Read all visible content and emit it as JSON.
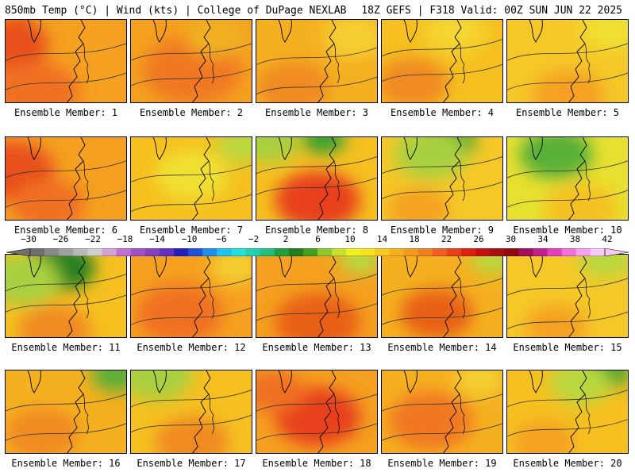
{
  "header": {
    "title_left": "850mb Temp (°C) | Wind (kts) | College of DuPage NEXLAB",
    "title_right": "18Z GEFS | F318 Valid: 00Z SUN JUN 22 2025"
  },
  "members": [
    {
      "label": "Ensemble Member: 1",
      "base": "#f5a020",
      "blobs": [
        [
          "#e8501c",
          0.05,
          0.3,
          0.3
        ],
        [
          "#f07020",
          0.25,
          0.85,
          0.35
        ],
        [
          "#e85018",
          0.1,
          0.05,
          0.12
        ]
      ],
      "contours": [
        0.35,
        0.7
      ]
    },
    {
      "label": "Ensemble Member: 2",
      "base": "#f5a020",
      "blobs": [
        [
          "#f07820",
          0.5,
          0.6,
          0.4
        ],
        [
          "#f0b020",
          0.7,
          0.2,
          0.25
        ]
      ],
      "contours": [
        0.35,
        0.65
      ]
    },
    {
      "label": "Ensemble Member: 3",
      "base": "#f5b020",
      "blobs": [
        [
          "#f5d030",
          0.8,
          0.2,
          0.25
        ],
        [
          "#f08a20",
          0.3,
          0.8,
          0.3
        ]
      ],
      "contours": [
        0.4,
        0.75
      ]
    },
    {
      "label": "Ensemble Member: 4",
      "base": "#f5c020",
      "blobs": [
        [
          "#f08a20",
          0.25,
          0.75,
          0.3
        ],
        [
          "#f5d630",
          0.6,
          0.15,
          0.25
        ]
      ],
      "contours": [
        0.3,
        0.6
      ]
    },
    {
      "label": "Ensemble Member: 5",
      "base": "#f5c828",
      "blobs": [
        [
          "#f5a020",
          0.5,
          0.9,
          0.3
        ],
        [
          "#f0e030",
          0.85,
          0.1,
          0.25
        ]
      ],
      "contours": [
        0.35,
        0.7
      ]
    },
    {
      "label": "Ensemble Member: 6",
      "base": "#f5a020",
      "blobs": [
        [
          "#e8501c",
          0.05,
          0.4,
          0.35
        ],
        [
          "#f07020",
          0.35,
          0.8,
          0.3
        ]
      ],
      "contours": [
        0.35,
        0.7
      ]
    },
    {
      "label": "Ensemble Member: 7",
      "base": "#f5c020",
      "blobs": [
        [
          "#f0e030",
          0.5,
          0.45,
          0.3
        ],
        [
          "#b8d840",
          0.9,
          0.1,
          0.2
        ]
      ],
      "contours": [
        0.4,
        0.75
      ]
    },
    {
      "label": "Ensemble Member: 8",
      "base": "#f5c020",
      "blobs": [
        [
          "#e8401c",
          0.5,
          0.75,
          0.35
        ],
        [
          "#38a030",
          0.55,
          0.02,
          0.18
        ],
        [
          "#a8d040",
          0.1,
          0.05,
          0.25
        ]
      ],
      "contours": [
        0.3,
        0.55
      ]
    },
    {
      "label": "Ensemble Member: 9",
      "base": "#f5c828",
      "blobs": [
        [
          "#38a030",
          0.55,
          0.05,
          0.22
        ],
        [
          "#a8d040",
          0.4,
          0.2,
          0.3
        ],
        [
          "#f5a020",
          0.3,
          0.85,
          0.25
        ]
      ],
      "contours": [
        0.3,
        0.6
      ]
    },
    {
      "label": "Ensemble Member: 10",
      "base": "#e8e030",
      "blobs": [
        [
          "#58b038",
          0.4,
          0.2,
          0.3
        ],
        [
          "#f5c020",
          0.6,
          0.85,
          0.3
        ]
      ],
      "contours": [
        0.35,
        0.7
      ]
    },
    {
      "label": "Ensemble Member: 11",
      "base": "#f5c020",
      "blobs": [
        [
          "#208020",
          0.45,
          0.15,
          0.28
        ],
        [
          "#a8d040",
          0.15,
          0.3,
          0.3
        ],
        [
          "#f08a20",
          0.4,
          0.9,
          0.3
        ]
      ],
      "contours": [
        0.3,
        0.55
      ]
    },
    {
      "label": "Ensemble Member: 12",
      "base": "#f5a020",
      "blobs": [
        [
          "#f07020",
          0.4,
          0.7,
          0.35
        ],
        [
          "#f5d030",
          0.85,
          0.15,
          0.2
        ]
      ],
      "contours": [
        0.35,
        0.7
      ]
    },
    {
      "label": "Ensemble Member: 13",
      "base": "#f5a020",
      "blobs": [
        [
          "#e86018",
          0.5,
          0.8,
          0.35
        ],
        [
          "#b8d840",
          0.85,
          0.05,
          0.18
        ]
      ],
      "contours": [
        0.3,
        0.65
      ]
    },
    {
      "label": "Ensemble Member: 14",
      "base": "#f5b020",
      "blobs": [
        [
          "#e86018",
          0.45,
          0.7,
          0.3
        ],
        [
          "#b8d840",
          0.9,
          0.05,
          0.18
        ]
      ],
      "contours": [
        0.35,
        0.7
      ]
    },
    {
      "label": "Ensemble Member: 15",
      "base": "#f5c828",
      "blobs": [
        [
          "#b8d840",
          0.8,
          0.05,
          0.22
        ],
        [
          "#f5a020",
          0.4,
          0.85,
          0.25
        ]
      ],
      "contours": [
        0.35,
        0.75
      ]
    },
    {
      "label": "Ensemble Member: 16",
      "base": "#f5b020",
      "blobs": [
        [
          "#58b038",
          0.9,
          0.05,
          0.2
        ],
        [
          "#f08a20",
          0.3,
          0.75,
          0.3
        ]
      ],
      "contours": [
        0.35,
        0.7
      ]
    },
    {
      "label": "Ensemble Member: 17",
      "base": "#f5c020",
      "blobs": [
        [
          "#a8d040",
          0.2,
          0.05,
          0.3
        ],
        [
          "#f08a20",
          0.5,
          0.85,
          0.3
        ]
      ],
      "contours": [
        0.3,
        0.6
      ]
    },
    {
      "label": "Ensemble Member: 18",
      "base": "#f5a020",
      "blobs": [
        [
          "#e8401c",
          0.5,
          0.55,
          0.35
        ],
        [
          "#f07020",
          0.15,
          0.25,
          0.25
        ]
      ],
      "contours": [
        0.35,
        0.7
      ]
    },
    {
      "label": "Ensemble Member: 19",
      "base": "#f5b020",
      "blobs": [
        [
          "#f07820",
          0.4,
          0.6,
          0.35
        ],
        [
          "#f5d030",
          0.8,
          0.1,
          0.2
        ]
      ],
      "contours": [
        0.35,
        0.7
      ]
    },
    {
      "label": "Ensemble Member: 20",
      "base": "#f5c020",
      "blobs": [
        [
          "#38a030",
          0.8,
          0.02,
          0.2
        ],
        [
          "#b8d840",
          0.6,
          0.15,
          0.25
        ],
        [
          "#f5a020",
          0.3,
          0.85,
          0.25
        ]
      ],
      "contours": [
        0.3,
        0.65
      ]
    }
  ],
  "colorbar": {
    "ticks": [
      "−30",
      "−26",
      "−22",
      "−18",
      "−14",
      "−10",
      "−6",
      "−2",
      "2",
      "6",
      "10",
      "14",
      "18",
      "22",
      "26",
      "30",
      "34",
      "38",
      "42"
    ],
    "colors": [
      "#707070",
      "#8a8a8a",
      "#a0a0a0",
      "#b8b8b8",
      "#cfcfcf",
      "#d4a0d8",
      "#c070d0",
      "#a050c8",
      "#8040c0",
      "#6030c0",
      "#2020c0",
      "#2050e0",
      "#2090f0",
      "#20c0f0",
      "#20e0e0",
      "#20d0b0",
      "#20c080",
      "#20a040",
      "#208020",
      "#40a020",
      "#90c830",
      "#c8e030",
      "#f0f020",
      "#f8e020",
      "#f8c820",
      "#f5b020",
      "#f59820",
      "#f08020",
      "#f06020",
      "#e84018",
      "#e02010",
      "#c81010",
      "#a81010",
      "#900810",
      "#a01060",
      "#c02090",
      "#e040c0",
      "#f070e0",
      "#f8a0f0",
      "#f8c8f8"
    ]
  }
}
